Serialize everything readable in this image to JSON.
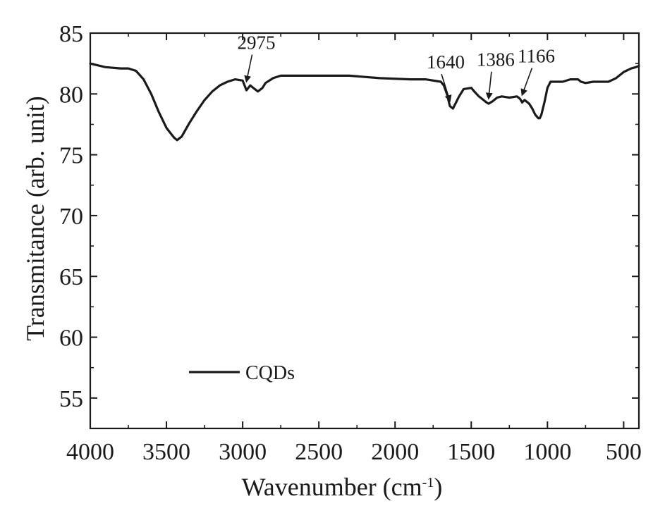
{
  "chart_data": {
    "type": "line",
    "xlabel": "Wavenumber (cm",
    "xlabel_sup": "-1",
    "xlabel_close": ")",
    "ylabel": "Transmitance (arb. unit)",
    "xlim": [
      4000,
      400
    ],
    "ylim": [
      52.5,
      85
    ],
    "x_reversed": true,
    "x_ticks": [
      4000,
      3500,
      3000,
      2500,
      2000,
      1500,
      1000,
      500
    ],
    "x_tick_labels": [
      "4000",
      "3500",
      "3000",
      "2500",
      "2000",
      "1500",
      "1000",
      "500"
    ],
    "y_ticks": [
      55,
      60,
      65,
      70,
      75,
      80,
      85
    ],
    "y_tick_labels": [
      "55",
      "60",
      "65",
      "70",
      "75",
      "80",
      "85"
    ],
    "grid": false,
    "legend_position": "bottom-left",
    "series": [
      {
        "name": "CQDs",
        "color": "#1a1a1a",
        "x": [
          4000,
          3900,
          3800,
          3750,
          3700,
          3650,
          3600,
          3550,
          3500,
          3450,
          3430,
          3400,
          3350,
          3300,
          3250,
          3200,
          3150,
          3100,
          3050,
          3000,
          2975,
          2950,
          2930,
          2900,
          2870,
          2850,
          2800,
          2750,
          2700,
          2500,
          2300,
          2100,
          1900,
          1800,
          1700,
          1680,
          1660,
          1640,
          1620,
          1600,
          1580,
          1550,
          1500,
          1480,
          1450,
          1420,
          1400,
          1386,
          1360,
          1330,
          1300,
          1250,
          1200,
          1180,
          1166,
          1150,
          1120,
          1100,
          1080,
          1060,
          1050,
          1040,
          1020,
          1000,
          980,
          950,
          900,
          850,
          800,
          780,
          750,
          700,
          650,
          600,
          550,
          500,
          450,
          420,
          400
        ],
        "y": [
          82.5,
          82.2,
          82.1,
          82.1,
          81.9,
          81.2,
          80.0,
          78.5,
          77.2,
          76.4,
          76.2,
          76.5,
          77.6,
          78.6,
          79.5,
          80.2,
          80.7,
          81.0,
          81.2,
          81.1,
          80.3,
          80.7,
          80.5,
          80.2,
          80.5,
          80.9,
          81.3,
          81.5,
          81.5,
          81.5,
          81.5,
          81.3,
          81.2,
          81.2,
          81.0,
          80.7,
          80.0,
          79.0,
          78.8,
          79.3,
          79.8,
          80.4,
          80.5,
          80.2,
          79.8,
          79.5,
          79.3,
          79.2,
          79.4,
          79.7,
          79.8,
          79.7,
          79.8,
          79.6,
          79.3,
          79.5,
          79.2,
          78.8,
          78.3,
          78.0,
          78.0,
          78.3,
          79.3,
          80.5,
          81.0,
          81.0,
          81.0,
          81.2,
          81.2,
          81.0,
          80.9,
          81.0,
          81.0,
          81.0,
          81.3,
          81.8,
          82.1,
          82.2,
          82.3
        ]
      }
    ],
    "annotations": [
      {
        "label": "2975",
        "x": 2975,
        "y": 80.8
      },
      {
        "label": "1640",
        "x": 1640,
        "y": 79.2
      },
      {
        "label": "1386",
        "x": 1386,
        "y": 79.4
      },
      {
        "label": "1166",
        "x": 1166,
        "y": 79.7
      }
    ]
  }
}
